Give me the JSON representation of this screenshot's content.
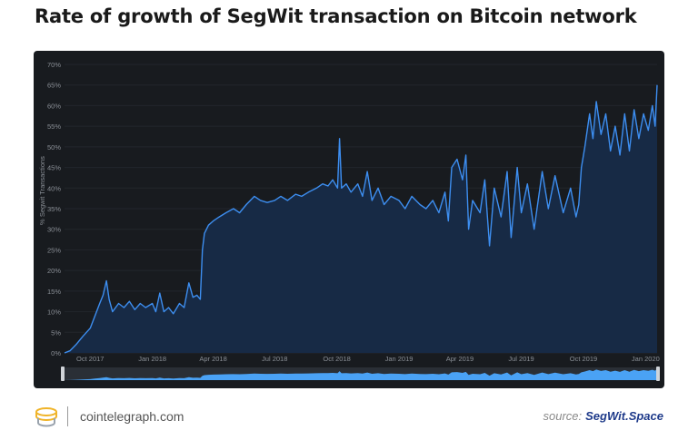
{
  "header": {
    "title": "Rate of growth of SegWit transaction on Bitcoin network"
  },
  "footer": {
    "site": "cointelegraph.com",
    "source_label": "source:",
    "source_name": "SegWit.Space",
    "logo_icon": "cointelegraph-logo-icon"
  },
  "colors": {
    "line": "#3d8ef0",
    "area": "#172a45",
    "panel": "#181b1f",
    "navigator": "#4aa2f5"
  },
  "chart_data": {
    "type": "area",
    "title": "Rate of growth of SegWit transaction on Bitcoin network",
    "xlabel": "",
    "ylabel": "% Segwit Transactions",
    "ylim": [
      0,
      70
    ],
    "yticks": [
      0,
      5,
      10,
      15,
      20,
      25,
      30,
      35,
      40,
      45,
      50,
      55,
      60,
      65,
      70
    ],
    "ytick_labels": [
      "0%",
      "5%",
      "10%",
      "15%",
      "20%",
      "25%",
      "30%",
      "35%",
      "40%",
      "45%",
      "50%",
      "55%",
      "60%",
      "65%",
      "70%"
    ],
    "xlim": [
      "2017-08-24",
      "2020-01-18"
    ],
    "xticks": [
      {
        "label": "Oct 2017",
        "date": "2017-10-01"
      },
      {
        "label": "Jan 2018",
        "date": "2018-01-01"
      },
      {
        "label": "Apr 2018",
        "date": "2018-04-01"
      },
      {
        "label": "Jul 2018",
        "date": "2018-07-01"
      },
      {
        "label": "Oct 2018",
        "date": "2018-10-01"
      },
      {
        "label": "Jan 2019",
        "date": "2019-01-01"
      },
      {
        "label": "Apr 2019",
        "date": "2019-04-01"
      },
      {
        "label": "Jul 2019",
        "date": "2019-07-01"
      },
      {
        "label": "Oct 2019",
        "date": "2019-10-01"
      },
      {
        "label": "Jan 2020",
        "date": "2020-01-01"
      }
    ],
    "series": [
      {
        "name": "% Segwit Transactions",
        "points": [
          [
            "2017-08-24",
            0
          ],
          [
            "2017-09-01",
            0.5
          ],
          [
            "2017-09-10",
            2
          ],
          [
            "2017-09-20",
            4
          ],
          [
            "2017-10-01",
            6
          ],
          [
            "2017-10-08",
            9
          ],
          [
            "2017-10-15",
            12
          ],
          [
            "2017-10-20",
            14
          ],
          [
            "2017-10-25",
            17.5
          ],
          [
            "2017-10-29",
            13
          ],
          [
            "2017-11-03",
            10
          ],
          [
            "2017-11-12",
            12
          ],
          [
            "2017-11-20",
            11
          ],
          [
            "2017-11-28",
            12.5
          ],
          [
            "2017-12-06",
            10.5
          ],
          [
            "2017-12-14",
            12
          ],
          [
            "2017-12-22",
            11
          ],
          [
            "2018-01-01",
            12
          ],
          [
            "2018-01-06",
            10
          ],
          [
            "2018-01-12",
            14.5
          ],
          [
            "2018-01-18",
            10
          ],
          [
            "2018-01-25",
            11
          ],
          [
            "2018-02-01",
            9.5
          ],
          [
            "2018-02-10",
            12
          ],
          [
            "2018-02-17",
            11
          ],
          [
            "2018-02-24",
            17
          ],
          [
            "2018-03-02",
            13.5
          ],
          [
            "2018-03-08",
            14
          ],
          [
            "2018-03-13",
            13
          ],
          [
            "2018-03-16",
            25
          ],
          [
            "2018-03-19",
            29
          ],
          [
            "2018-03-25",
            31
          ],
          [
            "2018-04-01",
            32
          ],
          [
            "2018-04-10",
            33
          ],
          [
            "2018-04-20",
            34
          ],
          [
            "2018-05-01",
            35
          ],
          [
            "2018-05-10",
            34
          ],
          [
            "2018-05-20",
            36
          ],
          [
            "2018-06-01",
            38
          ],
          [
            "2018-06-10",
            37
          ],
          [
            "2018-06-20",
            36.5
          ],
          [
            "2018-07-01",
            37
          ],
          [
            "2018-07-10",
            38
          ],
          [
            "2018-07-20",
            37
          ],
          [
            "2018-08-01",
            38.5
          ],
          [
            "2018-08-10",
            38
          ],
          [
            "2018-08-20",
            39
          ],
          [
            "2018-09-01",
            40
          ],
          [
            "2018-09-10",
            41
          ],
          [
            "2018-09-18",
            40.5
          ],
          [
            "2018-09-25",
            42
          ],
          [
            "2018-10-02",
            40
          ],
          [
            "2018-10-05",
            52
          ],
          [
            "2018-10-08",
            40
          ],
          [
            "2018-10-15",
            41
          ],
          [
            "2018-10-22",
            39
          ],
          [
            "2018-11-01",
            41
          ],
          [
            "2018-11-08",
            38
          ],
          [
            "2018-11-15",
            44
          ],
          [
            "2018-11-22",
            37
          ],
          [
            "2018-12-01",
            40
          ],
          [
            "2018-12-10",
            36
          ],
          [
            "2018-12-20",
            38
          ],
          [
            "2019-01-01",
            37
          ],
          [
            "2019-01-10",
            35
          ],
          [
            "2019-01-20",
            38
          ],
          [
            "2019-02-01",
            36
          ],
          [
            "2019-02-10",
            35
          ],
          [
            "2019-02-20",
            37
          ],
          [
            "2019-03-01",
            34
          ],
          [
            "2019-03-10",
            39
          ],
          [
            "2019-03-15",
            32
          ],
          [
            "2019-03-20",
            45
          ],
          [
            "2019-03-28",
            47
          ],
          [
            "2019-04-05",
            42
          ],
          [
            "2019-04-10",
            48
          ],
          [
            "2019-04-14",
            30
          ],
          [
            "2019-04-20",
            37
          ],
          [
            "2019-05-01",
            34
          ],
          [
            "2019-05-08",
            42
          ],
          [
            "2019-05-15",
            26
          ],
          [
            "2019-05-22",
            40
          ],
          [
            "2019-06-01",
            33
          ],
          [
            "2019-06-10",
            44
          ],
          [
            "2019-06-16",
            28
          ],
          [
            "2019-06-25",
            45
          ],
          [
            "2019-07-01",
            34
          ],
          [
            "2019-07-10",
            41
          ],
          [
            "2019-07-20",
            30
          ],
          [
            "2019-08-01",
            44
          ],
          [
            "2019-08-10",
            35
          ],
          [
            "2019-08-20",
            43
          ],
          [
            "2019-09-01",
            34
          ],
          [
            "2019-09-12",
            40
          ],
          [
            "2019-09-20",
            33
          ],
          [
            "2019-09-24",
            36
          ],
          [
            "2019-09-28",
            45
          ],
          [
            "2019-10-03",
            50
          ],
          [
            "2019-10-10",
            58
          ],
          [
            "2019-10-15",
            52
          ],
          [
            "2019-10-20",
            61
          ],
          [
            "2019-10-27",
            53
          ],
          [
            "2019-11-03",
            58
          ],
          [
            "2019-11-10",
            49
          ],
          [
            "2019-11-17",
            55
          ],
          [
            "2019-11-24",
            48
          ],
          [
            "2019-12-01",
            58
          ],
          [
            "2019-12-08",
            49
          ],
          [
            "2019-12-15",
            59
          ],
          [
            "2019-12-22",
            52
          ],
          [
            "2019-12-29",
            58
          ],
          [
            "2020-01-05",
            54
          ],
          [
            "2020-01-11",
            60
          ],
          [
            "2020-01-15",
            55
          ],
          [
            "2020-01-18",
            65
          ]
        ]
      }
    ]
  }
}
